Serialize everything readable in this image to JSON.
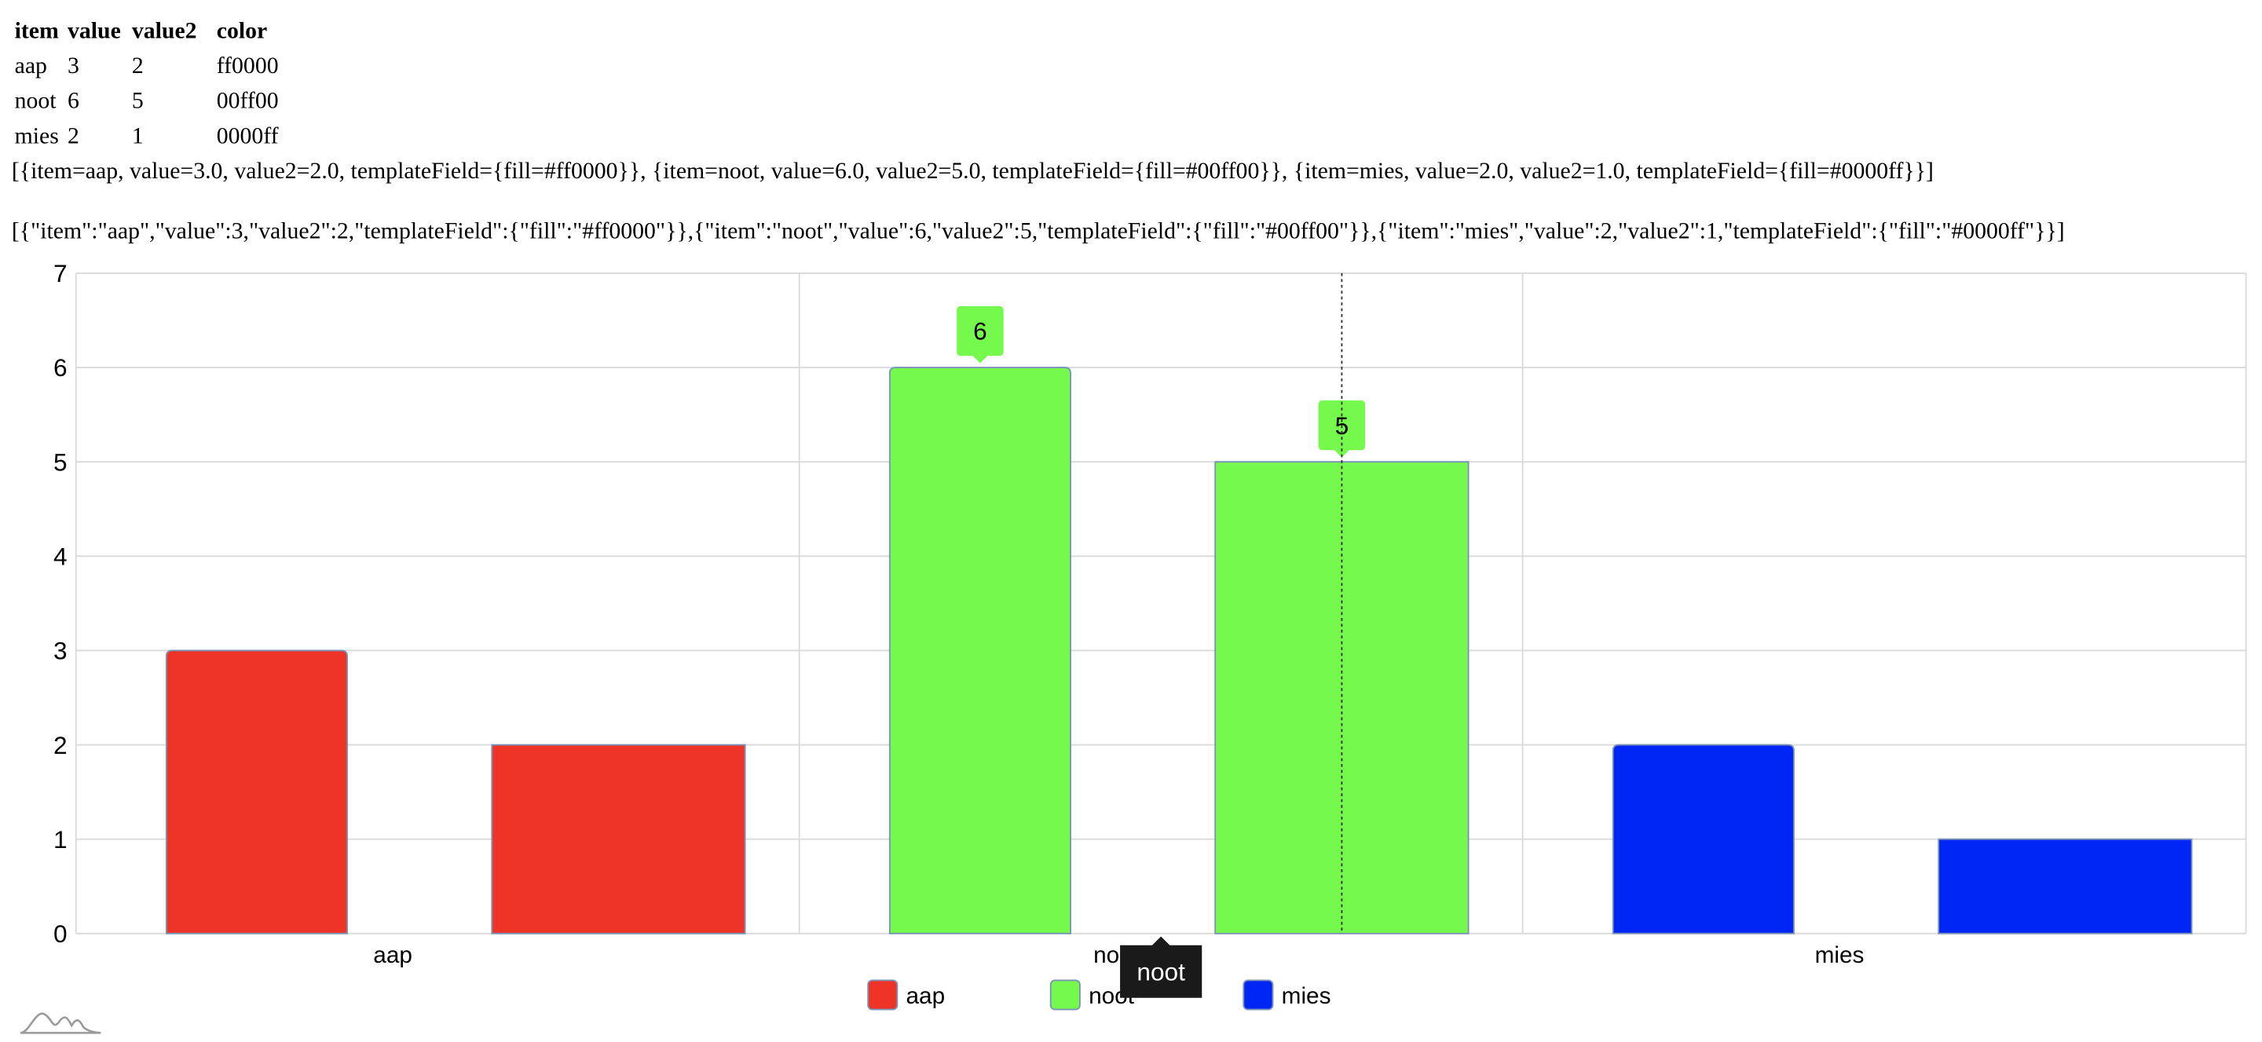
{
  "table": {
    "headers": [
      "item",
      "value",
      "value2",
      "color"
    ],
    "rows": [
      [
        "aap",
        "3",
        "2",
        "ff0000"
      ],
      [
        "noot",
        "6",
        "5",
        "00ff00"
      ],
      [
        "mies",
        "2",
        "1",
        "0000ff"
      ]
    ]
  },
  "dumps": {
    "line1": "[{item=aap, value=3.0, value2=2.0, templateField={fill=#ff0000}}, {item=noot, value=6.0, value2=5.0, templateField={fill=#00ff00}}, {item=mies, value=2.0, value2=1.0, templateField={fill=#0000ff}}]",
    "line2": "[{\"item\":\"aap\",\"value\":3,\"value2\":2,\"templateField\":{\"fill\":\"#ff0000\"}},{\"item\":\"noot\",\"value\":6,\"value2\":5,\"templateField\":{\"fill\":\"#00ff00\"}},{\"item\":\"mies\",\"value\":2,\"value2\":1,\"templateField\":{\"fill\":\"#0000ff\"}}]"
  },
  "chart_data": {
    "type": "bar",
    "categories": [
      "aap",
      "noot",
      "mies"
    ],
    "series": [
      {
        "field": "value",
        "values": [
          3,
          6,
          2
        ]
      },
      {
        "field": "value2",
        "values": [
          2,
          5,
          1
        ]
      }
    ],
    "category_colors": [
      "#ee3327",
      "#75f94c",
      "#0026f5"
    ],
    "ylim": [
      0,
      7
    ],
    "yticks": [
      0,
      1,
      2,
      3,
      4,
      5,
      6,
      7
    ],
    "grid": true,
    "legend": {
      "placement": "bottom-center",
      "entries": [
        "aap",
        "noot",
        "mies"
      ]
    },
    "data_labels": [
      {
        "category": "noot",
        "series": 0,
        "text": "6"
      },
      {
        "category": "noot",
        "series": 1,
        "text": "5"
      }
    ],
    "cursor": {
      "category": "noot",
      "tooltip": "noot"
    }
  }
}
